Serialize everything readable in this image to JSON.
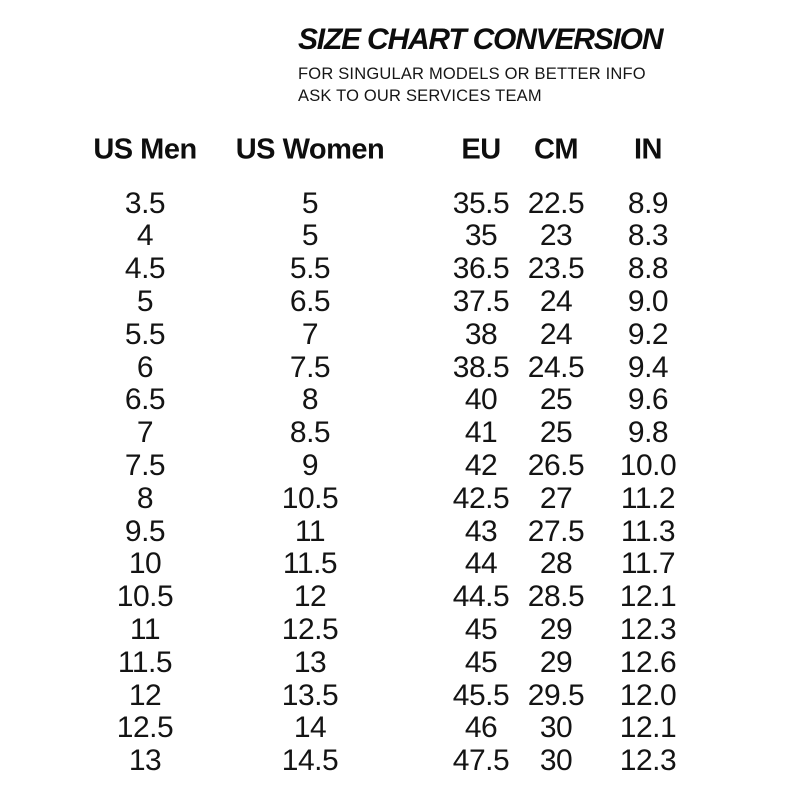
{
  "header": {
    "title": "SIZE CHART CONVERSION",
    "subtitle_line1": "FOR SINGULAR MODELS OR BETTER INFO",
    "subtitle_line2": "ASK TO OUR SERVICES TEAM"
  },
  "chart_data": {
    "type": "table",
    "title": "SIZE CHART CONVERSION",
    "columns": [
      "US Men",
      "US Women",
      "EU",
      "CM",
      "IN"
    ],
    "rows": [
      [
        "3.5",
        "5",
        "35.5",
        "22.5",
        "8.9"
      ],
      [
        "4",
        "5",
        "35",
        "23",
        "8.3"
      ],
      [
        "4.5",
        "5.5",
        "36.5",
        "23.5",
        "8.8"
      ],
      [
        "5",
        "6.5",
        "37.5",
        "24",
        "9.0"
      ],
      [
        "5.5",
        "7",
        "38",
        "24",
        "9.2"
      ],
      [
        "6",
        "7.5",
        "38.5",
        "24.5",
        "9.4"
      ],
      [
        "6.5",
        "8",
        "40",
        "25",
        "9.6"
      ],
      [
        "7",
        "8.5",
        "41",
        "25",
        "9.8"
      ],
      [
        "7.5",
        "9",
        "42",
        "26.5",
        "10.0"
      ],
      [
        "8",
        "10.5",
        "42.5",
        "27",
        "11.2"
      ],
      [
        "9.5",
        "11",
        "43",
        "27.5",
        "11.3"
      ],
      [
        "10",
        "11.5",
        "44",
        "28",
        "11.7"
      ],
      [
        "10.5",
        "12",
        "44.5",
        "28.5",
        "12.1"
      ],
      [
        "11",
        "12.5",
        "45",
        "29",
        "12.3"
      ],
      [
        "11.5",
        "13",
        "45",
        "29",
        "12.6"
      ],
      [
        "12",
        "13.5",
        "45.5",
        "29.5",
        "12.0"
      ],
      [
        "12.5",
        "14",
        "46",
        "30",
        "12.1"
      ],
      [
        "13",
        "14.5",
        "47.5",
        "30",
        "12.3"
      ]
    ]
  },
  "colors": {
    "text": "#131313",
    "background": "#ffffff"
  }
}
